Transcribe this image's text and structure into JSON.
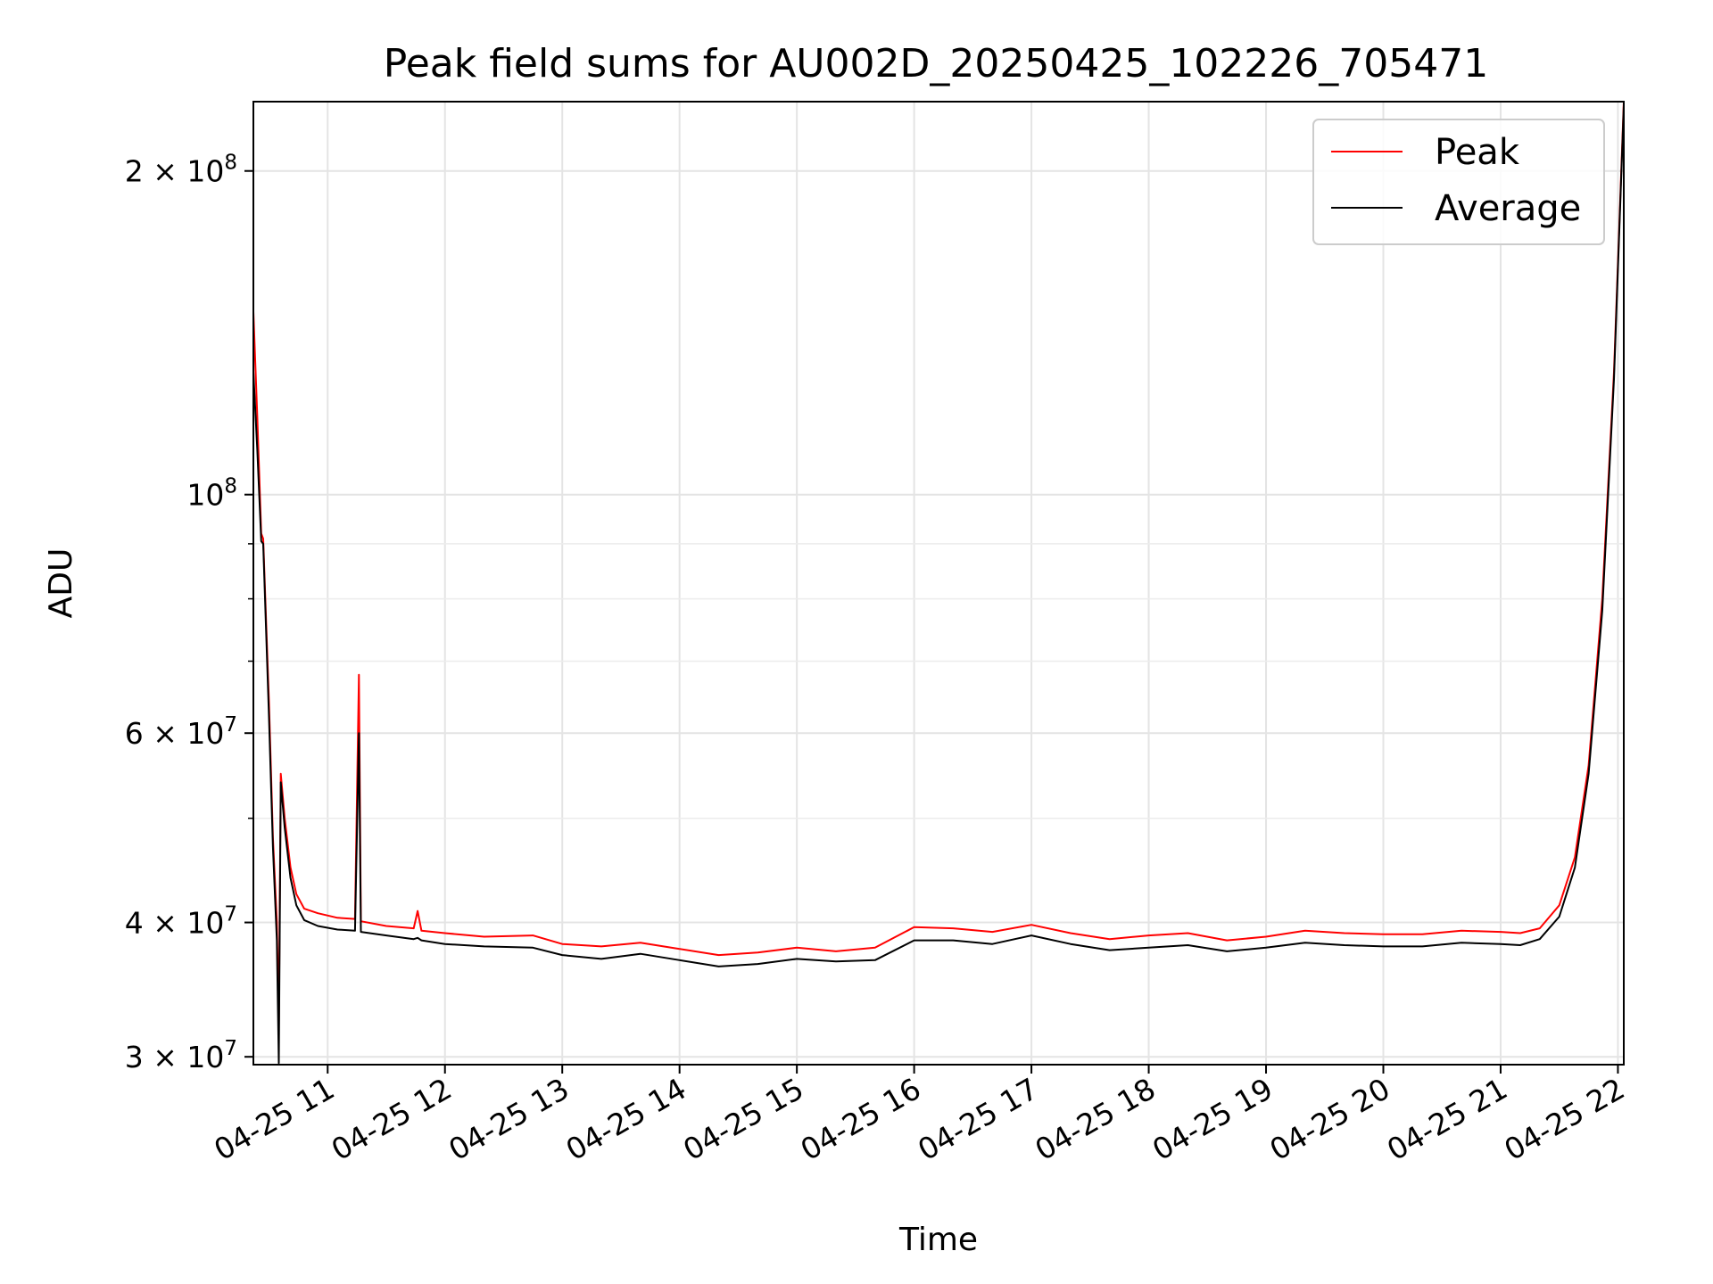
{
  "chart_data": {
    "type": "line",
    "title": "Peak field sums for AU002D_20250425_102226_705471",
    "xlabel": "Time",
    "ylabel": "ADU",
    "yscale": "log",
    "ylim": [
      29500000,
      232000000
    ],
    "xlim": [
      "2025-04-25 10:22",
      "2025-04-25 22:03"
    ],
    "x_ticks": [
      {
        "value": "2025-04-25 11:00",
        "label": "04-25 11"
      },
      {
        "value": "2025-04-25 12:00",
        "label": "04-25 12"
      },
      {
        "value": "2025-04-25 13:00",
        "label": "04-25 13"
      },
      {
        "value": "2025-04-25 14:00",
        "label": "04-25 14"
      },
      {
        "value": "2025-04-25 15:00",
        "label": "04-25 15"
      },
      {
        "value": "2025-04-25 16:00",
        "label": "04-25 16"
      },
      {
        "value": "2025-04-25 17:00",
        "label": "04-25 17"
      },
      {
        "value": "2025-04-25 18:00",
        "label": "04-25 18"
      },
      {
        "value": "2025-04-25 19:00",
        "label": "04-25 19"
      },
      {
        "value": "2025-04-25 20:00",
        "label": "04-25 20"
      },
      {
        "value": "2025-04-25 21:00",
        "label": "04-25 21"
      },
      {
        "value": "2025-04-25 22:00",
        "label": "04-25 22"
      }
    ],
    "y_ticks": [
      {
        "value": 30000000,
        "mant": "3",
        "exp": "7"
      },
      {
        "value": 40000000,
        "mant": "4",
        "exp": "7"
      },
      {
        "value": 60000000,
        "mant": "6",
        "exp": "7"
      },
      {
        "value": 100000000,
        "mant": "",
        "exp": "8"
      },
      {
        "value": 200000000,
        "mant": "2",
        "exp": "8"
      }
    ],
    "y_minor_ticks": [
      50000000,
      70000000,
      80000000,
      90000000
    ],
    "grid": true,
    "legend_position": "top-right",
    "series": [
      {
        "name": "Peak",
        "color": "#ff0000",
        "points": [
          [
            "2025-04-25 10:22",
            148000000
          ],
          [
            "2025-04-25 10:24",
            118000000
          ],
          [
            "2025-04-25 10:26",
            92000000
          ],
          [
            "2025-04-25 10:27",
            91000000
          ],
          [
            "2025-04-25 10:30",
            64000000
          ],
          [
            "2025-04-25 10:32",
            48000000
          ],
          [
            "2025-04-25 10:34",
            40000000
          ],
          [
            "2025-04-25 10:35",
            32000000
          ],
          [
            "2025-04-25 10:36",
            55000000
          ],
          [
            "2025-04-25 10:38",
            50000000
          ],
          [
            "2025-04-25 10:41",
            45000000
          ],
          [
            "2025-04-25 10:44",
            42500000
          ],
          [
            "2025-04-25 10:48",
            41200000
          ],
          [
            "2025-04-25 10:55",
            40800000
          ],
          [
            "2025-04-25 11:05",
            40400000
          ],
          [
            "2025-04-25 11:14",
            40300000
          ],
          [
            "2025-04-25 11:16",
            68000000
          ],
          [
            "2025-04-25 11:17",
            40100000
          ],
          [
            "2025-04-25 11:30",
            39700000
          ],
          [
            "2025-04-25 11:44",
            39500000
          ],
          [
            "2025-04-25 11:46",
            41000000
          ],
          [
            "2025-04-25 11:48",
            39300000
          ],
          [
            "2025-04-25 12:00",
            39100000
          ],
          [
            "2025-04-25 12:20",
            38800000
          ],
          [
            "2025-04-25 12:45",
            38900000
          ],
          [
            "2025-04-25 13:00",
            38200000
          ],
          [
            "2025-04-25 13:20",
            38000000
          ],
          [
            "2025-04-25 13:40",
            38300000
          ],
          [
            "2025-04-25 14:00",
            37800000
          ],
          [
            "2025-04-25 14:20",
            37300000
          ],
          [
            "2025-04-25 14:40",
            37500000
          ],
          [
            "2025-04-25 15:00",
            37900000
          ],
          [
            "2025-04-25 15:20",
            37600000
          ],
          [
            "2025-04-25 15:40",
            37900000
          ],
          [
            "2025-04-25 16:00",
            39600000
          ],
          [
            "2025-04-25 16:20",
            39500000
          ],
          [
            "2025-04-25 16:40",
            39200000
          ],
          [
            "2025-04-25 17:00",
            39800000
          ],
          [
            "2025-04-25 17:20",
            39100000
          ],
          [
            "2025-04-25 17:40",
            38600000
          ],
          [
            "2025-04-25 18:00",
            38900000
          ],
          [
            "2025-04-25 18:20",
            39100000
          ],
          [
            "2025-04-25 18:40",
            38500000
          ],
          [
            "2025-04-25 19:00",
            38800000
          ],
          [
            "2025-04-25 19:20",
            39300000
          ],
          [
            "2025-04-25 19:40",
            39100000
          ],
          [
            "2025-04-25 20:00",
            39000000
          ],
          [
            "2025-04-25 20:20",
            39000000
          ],
          [
            "2025-04-25 20:40",
            39300000
          ],
          [
            "2025-04-25 21:00",
            39200000
          ],
          [
            "2025-04-25 21:10",
            39100000
          ],
          [
            "2025-04-25 21:20",
            39500000
          ],
          [
            "2025-04-25 21:30",
            41500000
          ],
          [
            "2025-04-25 21:38",
            46000000
          ],
          [
            "2025-04-25 21:45",
            56000000
          ],
          [
            "2025-04-25 21:52",
            80000000
          ],
          [
            "2025-04-25 21:58",
            130000000
          ],
          [
            "2025-04-25 22:03",
            232000000
          ]
        ]
      },
      {
        "name": "Average",
        "color": "#000000",
        "points": [
          [
            "2025-04-25 10:22",
            130000000
          ],
          [
            "2025-04-25 10:24",
            110000000
          ],
          [
            "2025-04-25 10:26",
            90500000
          ],
          [
            "2025-04-25 10:27",
            90000000
          ],
          [
            "2025-04-25 10:30",
            62000000
          ],
          [
            "2025-04-25 10:32",
            47000000
          ],
          [
            "2025-04-25 10:34",
            38500000
          ],
          [
            "2025-04-25 10:35",
            29600000
          ],
          [
            "2025-04-25 10:36",
            54000000
          ],
          [
            "2025-04-25 10:38",
            49000000
          ],
          [
            "2025-04-25 10:41",
            44000000
          ],
          [
            "2025-04-25 10:44",
            41500000
          ],
          [
            "2025-04-25 10:48",
            40200000
          ],
          [
            "2025-04-25 10:55",
            39700000
          ],
          [
            "2025-04-25 11:05",
            39400000
          ],
          [
            "2025-04-25 11:14",
            39300000
          ],
          [
            "2025-04-25 11:16",
            60000000
          ],
          [
            "2025-04-25 11:17",
            39200000
          ],
          [
            "2025-04-25 11:30",
            38900000
          ],
          [
            "2025-04-25 11:44",
            38600000
          ],
          [
            "2025-04-25 11:46",
            38700000
          ],
          [
            "2025-04-25 11:48",
            38500000
          ],
          [
            "2025-04-25 12:00",
            38200000
          ],
          [
            "2025-04-25 12:20",
            38000000
          ],
          [
            "2025-04-25 12:45",
            37900000
          ],
          [
            "2025-04-25 13:00",
            37300000
          ],
          [
            "2025-04-25 13:20",
            37000000
          ],
          [
            "2025-04-25 13:40",
            37400000
          ],
          [
            "2025-04-25 14:00",
            36900000
          ],
          [
            "2025-04-25 14:20",
            36400000
          ],
          [
            "2025-04-25 14:40",
            36600000
          ],
          [
            "2025-04-25 15:00",
            37000000
          ],
          [
            "2025-04-25 15:20",
            36800000
          ],
          [
            "2025-04-25 15:40",
            36900000
          ],
          [
            "2025-04-25 16:00",
            38500000
          ],
          [
            "2025-04-25 16:20",
            38500000
          ],
          [
            "2025-04-25 16:40",
            38200000
          ],
          [
            "2025-04-25 17:00",
            38900000
          ],
          [
            "2025-04-25 17:20",
            38200000
          ],
          [
            "2025-04-25 17:40",
            37700000
          ],
          [
            "2025-04-25 18:00",
            37900000
          ],
          [
            "2025-04-25 18:20",
            38100000
          ],
          [
            "2025-04-25 18:40",
            37600000
          ],
          [
            "2025-04-25 19:00",
            37900000
          ],
          [
            "2025-04-25 19:20",
            38300000
          ],
          [
            "2025-04-25 19:40",
            38100000
          ],
          [
            "2025-04-25 20:00",
            38000000
          ],
          [
            "2025-04-25 20:20",
            38000000
          ],
          [
            "2025-04-25 20:40",
            38300000
          ],
          [
            "2025-04-25 21:00",
            38200000
          ],
          [
            "2025-04-25 21:10",
            38100000
          ],
          [
            "2025-04-25 21:20",
            38600000
          ],
          [
            "2025-04-25 21:30",
            40500000
          ],
          [
            "2025-04-25 21:38",
            45000000
          ],
          [
            "2025-04-25 21:45",
            55000000
          ],
          [
            "2025-04-25 21:52",
            78000000
          ],
          [
            "2025-04-25 21:58",
            128000000
          ],
          [
            "2025-04-25 22:03",
            230000000
          ]
        ]
      }
    ]
  }
}
